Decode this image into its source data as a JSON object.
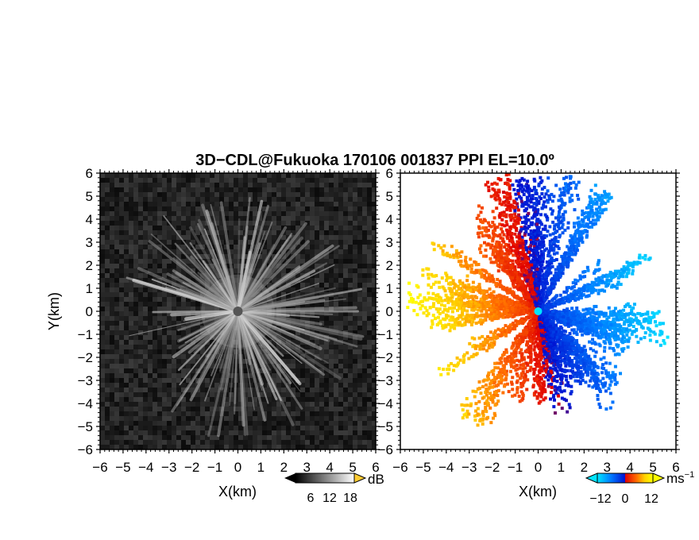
{
  "figure": {
    "title": "3D−CDL@Fukuoka 170106 001837 PPI EL=10.0º"
  },
  "chart_data": [
    {
      "type": "heatmap",
      "panel": "reflectivity",
      "xlabel": "X(km)",
      "ylabel": "Y(km)",
      "xlim": [
        -6,
        6
      ],
      "ylim": [
        -6,
        6
      ],
      "x_ticks": [
        "−6",
        "−5",
        "−4",
        "−3",
        "−2",
        "−1",
        "0",
        "1",
        "2",
        "3",
        "4",
        "5",
        "6"
      ],
      "y_ticks": [
        "6",
        "5",
        "4",
        "3",
        "2",
        "1",
        "0",
        "−1",
        "−2",
        "−3",
        "−4",
        "−5",
        "−6"
      ],
      "colorbar": {
        "unit": "dB",
        "tick_labels": [
          "6",
          "12",
          "18"
        ],
        "range": [
          0,
          24
        ],
        "colors": [
          "#000000",
          "#ffffff"
        ]
      },
      "description_values": {
        "background_level_dB": 3,
        "beam_level_dB_max": 16
      }
    },
    {
      "type": "heatmap",
      "panel": "doppler_velocity",
      "xlabel": "X(km)",
      "ylabel": "",
      "xlim": [
        -6,
        6
      ],
      "ylim": [
        -6,
        6
      ],
      "x_ticks": [
        "−6",
        "−5",
        "−4",
        "−3",
        "−2",
        "−1",
        "0",
        "1",
        "2",
        "3",
        "4",
        "5",
        "6"
      ],
      "y_ticks": [
        "6",
        "5",
        "4",
        "3",
        "2",
        "1",
        "0",
        "−1",
        "−2",
        "−3",
        "−4",
        "−5",
        "−6"
      ],
      "colorbar": {
        "unit": "ms",
        "unit_exponent": "−1",
        "tick_labels": [
          "−12",
          "0",
          "12"
        ],
        "range": [
          -16,
          16
        ],
        "colors": [
          "#00e5ff",
          "#0078ff",
          "#0010d0",
          "#e00000",
          "#ff6a00",
          "#ffd000",
          "#ffff00"
        ]
      }
    }
  ]
}
